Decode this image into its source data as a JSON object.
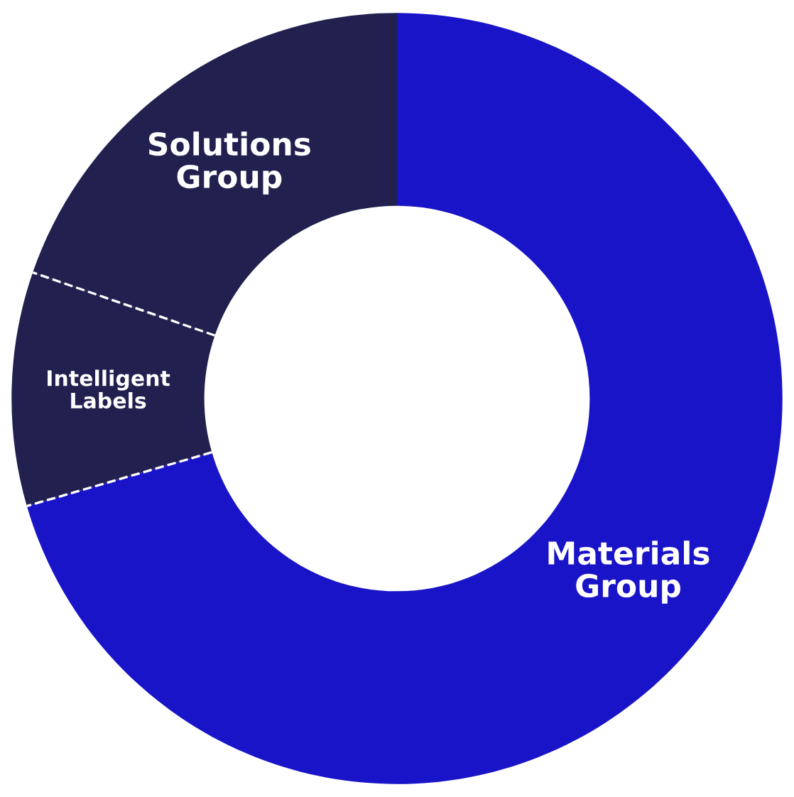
{
  "chart_data": {
    "type": "donut",
    "categories": [
      "Materials Group",
      "Intelligent Labels",
      "Solutions Group"
    ],
    "values": [
      70.5,
      9.8,
      19.7
    ],
    "colors": [
      "#1a14c8",
      "#22204f",
      "#22204f"
    ],
    "legend": false
  }
}
